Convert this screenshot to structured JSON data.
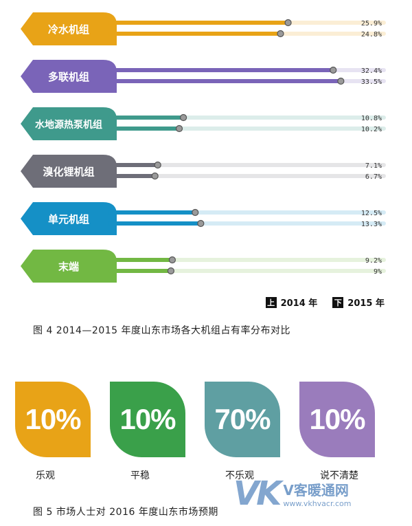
{
  "chart_data": [
    {
      "type": "bar",
      "categories": [
        "冷水机组",
        "多联机组",
        "水地源热泵机组",
        "溴化锂机组",
        "单元机组",
        "末端"
      ],
      "series": [
        {
          "name": "2014 年",
          "values": [
            25.9,
            32.4,
            10.8,
            7.1,
            12.5,
            9.2
          ]
        },
        {
          "name": "2015 年",
          "values": [
            24.8,
            33.5,
            10.2,
            6.7,
            13.3,
            9
          ]
        }
      ],
      "value_labels": [
        [
          "25.9%",
          "24.8%"
        ],
        [
          "32.4%",
          "33.5%"
        ],
        [
          "10.8%",
          "10.2%"
        ],
        [
          "7.1%",
          "6.7%"
        ],
        [
          "12.5%",
          "13.3%"
        ],
        [
          "9.2%",
          "9%"
        ]
      ],
      "legend": {
        "upper_key": "上",
        "upper_label": "2014 年",
        "lower_key": "下",
        "lower_label": "2015 年",
        "placement": "bottom-right"
      },
      "colors": [
        "#e8a317",
        "#7a64b8",
        "#3f9a8c",
        "#6e6e78",
        "#1590c6",
        "#72b843"
      ],
      "caption": "图 4    2014—2015 年度山东市场各大机组占有率分布对比",
      "xlim": [
        0,
        40
      ]
    },
    {
      "type": "bar",
      "categories": [
        "乐观",
        "平稳",
        "不乐观",
        "说不清楚"
      ],
      "values": [
        10,
        10,
        70,
        10
      ],
      "value_labels": [
        "10%",
        "10%",
        "70%",
        "10%"
      ],
      "colors": [
        "#e8a317",
        "#3aa04a",
        "#5f9fa2",
        "#9a7cbc"
      ],
      "caption": "图 5    市场人士对 2016 年度山东市场预期"
    }
  ],
  "watermark": {
    "logo": "VK",
    "name": "V客暖通网",
    "url": "www.vkhvacr.com"
  }
}
